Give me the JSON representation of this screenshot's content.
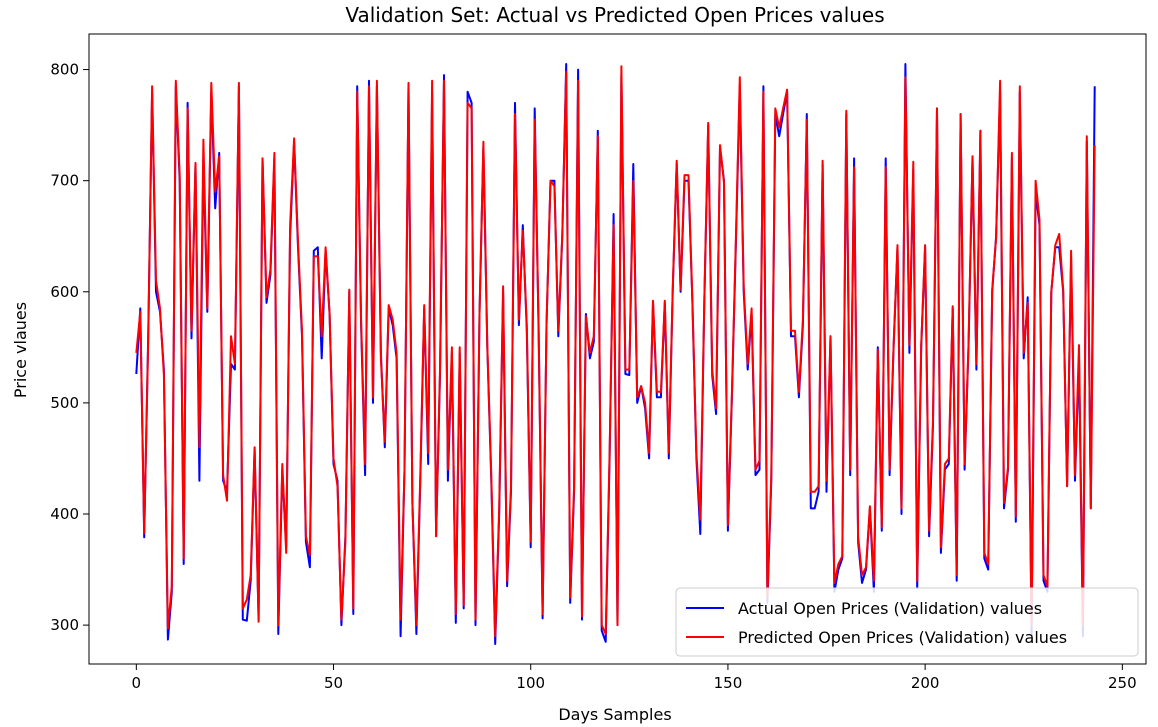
{
  "chart_data": {
    "type": "line",
    "title": "Validation Set: Actual vs Predicted Open Prices values",
    "xlabel": "Days Samples",
    "ylabel": "Price vlaues",
    "xlim": [
      -12,
      256
    ],
    "ylim": [
      265,
      832
    ],
    "xticks": [
      0,
      50,
      100,
      150,
      200,
      250
    ],
    "yticks": [
      300,
      400,
      500,
      600,
      700,
      800
    ],
    "grid": false,
    "legend_position": "lower-right",
    "series": [
      {
        "name": "Actual Open Prices (Validation) values",
        "color": "#0000ff",
        "values": [
          526,
          585,
          379,
          560,
          780,
          600,
          582,
          530,
          287,
          330,
          785,
          700,
          355,
          770,
          558,
          715,
          430,
          720,
          582,
          780,
          675,
          725,
          430,
          420,
          535,
          530,
          785,
          305,
          304,
          340,
          458,
          305,
          720,
          590,
          615,
          720,
          292,
          440,
          370,
          650,
          735,
          640,
          560,
          375,
          352,
          637,
          640,
          540,
          637,
          580,
          445,
          430,
          300,
          380,
          600,
          310,
          785,
          570,
          435,
          790,
          500,
          785,
          545,
          460,
          585,
          570,
          540,
          290,
          440,
          785,
          410,
          292,
          430,
          585,
          445,
          780,
          380,
          525,
          795,
          430,
          545,
          302,
          545,
          315,
          780,
          770,
          300,
          580,
          730,
          550,
          430,
          283,
          400,
          600,
          335,
          420,
          770,
          570,
          660,
          565,
          370,
          765,
          565,
          306,
          570,
          700,
          700,
          560,
          650,
          805,
          320,
          420,
          800,
          305,
          580,
          540,
          555,
          745,
          295,
          285,
          450,
          670,
          300,
          795,
          526,
          525,
          715,
          500,
          515,
          495,
          450,
          590,
          505,
          505,
          590,
          450,
          600,
          715,
          600,
          700,
          700,
          590,
          450,
          382,
          590,
          750,
          525,
          490,
          730,
          700,
          385,
          505,
          640,
          785,
          600,
          530,
          580,
          435,
          440,
          785,
          320,
          430,
          760,
          740,
          760,
          780,
          560,
          560,
          505,
          570,
          760,
          405,
          405,
          420,
          715,
          420,
          560,
          330,
          350,
          360,
          760,
          435,
          720,
          375,
          338,
          350,
          405,
          330,
          550,
          385,
          720,
          435,
          550,
          640,
          400,
          805,
          545,
          710,
          333,
          550,
          640,
          380,
          480,
          765,
          365,
          440,
          445,
          585,
          340,
          760,
          440,
          550,
          720,
          530,
          745,
          360,
          350,
          600,
          650,
          780,
          405,
          440,
          720,
          393,
          780,
          540,
          595,
          290,
          690,
          660,
          340,
          330,
          600,
          640,
          640,
          600,
          425,
          630,
          430,
          540,
          290,
          735,
          405,
          785
        ]
      },
      {
        "name": "Predicted Open Prices (Validation) values",
        "color": "#ff0000",
        "values": [
          545,
          582,
          383,
          555,
          785,
          610,
          585,
          525,
          297,
          335,
          790,
          705,
          360,
          765,
          565,
          716,
          460,
          737,
          585,
          788,
          690,
          722,
          435,
          412,
          560,
          535,
          788,
          315,
          323,
          345,
          460,
          303,
          720,
          595,
          620,
          725,
          300,
          445,
          365,
          660,
          738,
          645,
          565,
          380,
          363,
          632,
          632,
          560,
          640,
          580,
          450,
          425,
          305,
          375,
          602,
          315,
          780,
          575,
          445,
          785,
          505,
          790,
          540,
          465,
          588,
          575,
          545,
          305,
          440,
          788,
          410,
          300,
          435,
          588,
          455,
          790,
          380,
          530,
          790,
          440,
          550,
          310,
          550,
          318,
          770,
          765,
          305,
          580,
          735,
          552,
          435,
          290,
          405,
          605,
          340,
          425,
          760,
          575,
          655,
          570,
          375,
          755,
          570,
          310,
          570,
          700,
          695,
          565,
          652,
          798,
          325,
          425,
          790,
          308,
          578,
          545,
          560,
          740,
          300,
          292,
          455,
          660,
          300,
          803,
          530,
          530,
          700,
          505,
          515,
          500,
          455,
          592,
          510,
          510,
          592,
          455,
          602,
          718,
          602,
          705,
          705,
          592,
          455,
          395,
          592,
          752,
          530,
          495,
          732,
          698,
          390,
          508,
          645,
          793,
          605,
          535,
          585,
          440,
          448,
          780,
          325,
          435,
          765,
          748,
          765,
          782,
          565,
          565,
          510,
          575,
          755,
          420,
          420,
          425,
          718,
          430,
          560,
          338,
          355,
          362,
          763,
          440,
          712,
          380,
          345,
          352,
          407,
          340,
          548,
          388,
          712,
          440,
          552,
          642,
          405,
          793,
          552,
          717,
          340,
          552,
          642,
          385,
          485,
          765,
          370,
          445,
          450,
          587,
          345,
          760,
          445,
          552,
          722,
          535,
          745,
          365,
          355,
          602,
          648,
          790,
          410,
          442,
          725,
          398,
          785,
          545,
          590,
          300,
          700,
          665,
          345,
          335,
          600,
          642,
          652,
          602,
          425,
          637,
          435,
          552,
          300,
          740,
          405,
          732
        ]
      }
    ]
  }
}
